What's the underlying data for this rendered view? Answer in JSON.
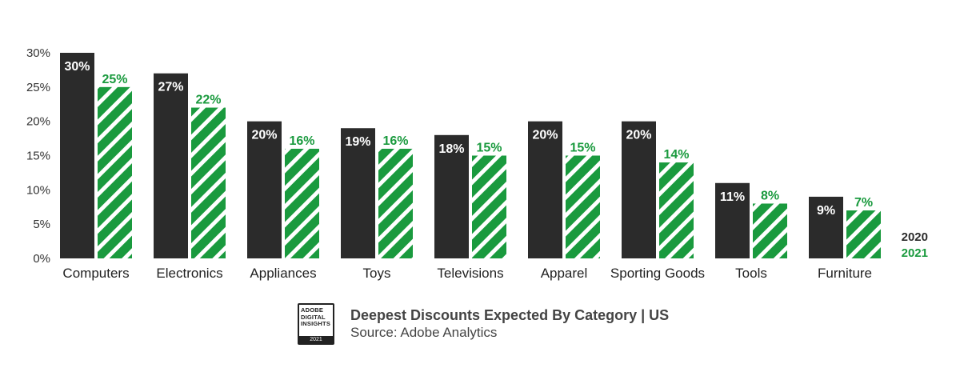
{
  "chart_data": {
    "type": "bar",
    "title": "Deepest Discounts Expected By Category | US",
    "source": "Source: Adobe Analytics",
    "xlabel": "",
    "ylabel": "",
    "ylim": [
      0,
      30
    ],
    "yticks": [
      "0%",
      "5%",
      "10%",
      "15%",
      "20%",
      "25%",
      "30%"
    ],
    "grid": false,
    "legend_position": "bottom-right",
    "categories": [
      "Computers",
      "Electronics",
      "Appliances",
      "Toys",
      "Televisions",
      "Apparel",
      "Sporting Goods",
      "Tools",
      "Furniture"
    ],
    "series": [
      {
        "name": "2020",
        "color": "#2b2b2b",
        "values": [
          30,
          27,
          20,
          19,
          18,
          20,
          20,
          11,
          9
        ],
        "labels": [
          "30%",
          "27%",
          "20%",
          "19%",
          "18%",
          "20%",
          "20%",
          "11%",
          "9%"
        ]
      },
      {
        "name": "2021",
        "color": "#1a9a3e",
        "pattern": "diagonal-hatch",
        "values": [
          25,
          22,
          16,
          16,
          15,
          15,
          14,
          8,
          7
        ],
        "labels": [
          "25%",
          "22%",
          "16%",
          "16%",
          "15%",
          "15%",
          "14%",
          "8%",
          "7%"
        ]
      }
    ]
  },
  "badge": {
    "lines": [
      "ADOBE",
      "DIGITAL",
      "INSIGHTS"
    ],
    "year": "2021"
  }
}
